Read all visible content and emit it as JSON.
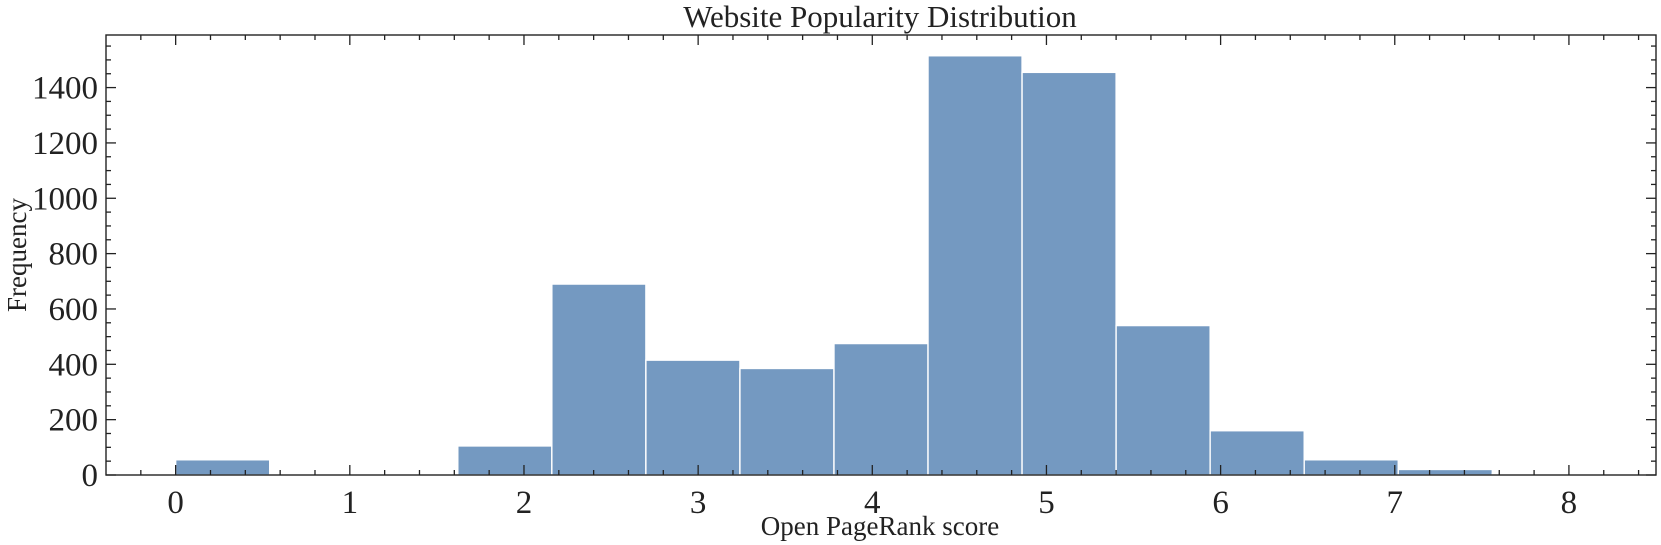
{
  "chart_data": {
    "type": "bar",
    "title": "Website Popularity Distribution",
    "xlabel": "Open PageRank score",
    "ylabel": "Frequency",
    "xlim": [
      -0.4,
      8.5
    ],
    "ylim": [
      0,
      1590
    ],
    "xticks": [
      "0",
      "1",
      "2",
      "3",
      "4",
      "5",
      "6",
      "7",
      "8"
    ],
    "yticks": [
      "0",
      "200",
      "400",
      "600",
      "800",
      "1000",
      "1200",
      "1400"
    ],
    "bin_edges": [
      0,
      0.54,
      1.08,
      1.62,
      2.16,
      2.7,
      3.24,
      3.78,
      4.32,
      4.86,
      5.4,
      5.94,
      6.48,
      7.02,
      7.56,
      8.1
    ],
    "values": [
      55,
      0,
      5,
      105,
      690,
      415,
      385,
      475,
      1515,
      1455,
      540,
      160,
      55,
      20,
      5
    ],
    "grid": false,
    "colors": {
      "bar": "#7499c1",
      "bar_edge": "#ffffff",
      "axes": "#222222"
    }
  }
}
